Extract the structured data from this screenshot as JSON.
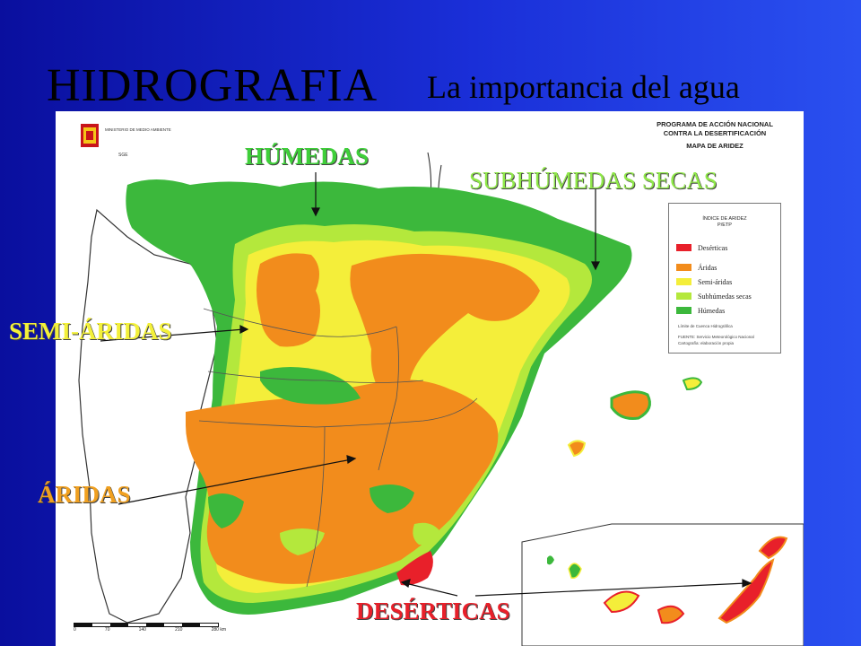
{
  "header": {
    "title": "HIDROGRAFIA",
    "subtitle": "La importancia del agua"
  },
  "map": {
    "ministry_text": "MINISTERIO DE MEDIO AMBIENTE",
    "heading_lines": [
      "PROGRAMA DE ACCIÓN NACIONAL",
      "CONTRA LA DESERTIFICACIÓN",
      "MAPA DE ARIDEZ"
    ],
    "legend": {
      "title_line1": "ÍNDICE DE ARIDEZ",
      "title_line2": "P/ETP",
      "items": [
        {
          "label": "Desérticas",
          "color": "#e8202a"
        },
        {
          "label": "Áridas",
          "color": "#f28c1c"
        },
        {
          "label": "Semi-áridas",
          "color": "#f4ee3a"
        },
        {
          "label": "Subhúmedas secas",
          "color": "#b4e83c"
        },
        {
          "label": "Húmedas",
          "color": "#3cb83c"
        }
      ],
      "boundary_label": "Límite de Cuenca Hidrográfica",
      "source_line1": "FUENTE: Servicio Meteorológico Nacional",
      "source_line2": "Cartografía: elaboración propia"
    },
    "scale_ticks": [
      "0",
      "70",
      "140",
      "210",
      "280 km"
    ]
  },
  "zone_labels": {
    "humedas": "HÚMEDAS",
    "subhumedas": "SUBHÚMEDAS SECAS",
    "semiaridas": "SEMI-ÁRIDAS",
    "aridas": "ÁRIDAS",
    "deserticas": "DESÉRTICAS"
  }
}
